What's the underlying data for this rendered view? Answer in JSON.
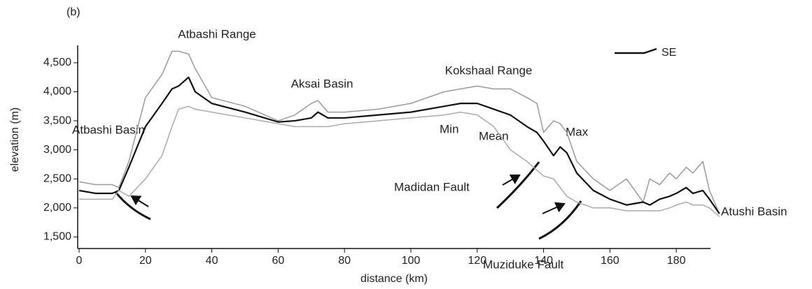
{
  "chart_data": {
    "type": "line",
    "panel_label": "(b)",
    "xlabel": "distance (km)",
    "ylabel": "elevation (m)",
    "annotations": [
      "Atbashi Range",
      "Atbashi Basin",
      "Aksai Basin",
      "Kokshaal Range",
      "Madidan Fault",
      "Muziduke Fault",
      "Atushi Basin",
      "SE"
    ],
    "x": [
      0,
      5,
      10,
      12,
      15,
      20,
      25,
      28,
      30,
      33,
      35,
      40,
      50,
      60,
      65,
      70,
      72,
      75,
      80,
      90,
      100,
      110,
      115,
      120,
      125,
      130,
      135,
      138,
      140,
      143,
      145,
      147,
      150,
      155,
      160,
      165,
      170,
      172,
      175,
      178,
      180,
      183,
      185,
      188,
      190,
      193
    ],
    "series": [
      {
        "name": "Max",
        "color": "#999999",
        "values": [
          2450,
          2400,
          2400,
          2350,
          2800,
          3900,
          4300,
          4700,
          4700,
          4650,
          4400,
          3900,
          3750,
          3500,
          3600,
          3800,
          3850,
          3650,
          3650,
          3700,
          3800,
          4000,
          4050,
          4100,
          4050,
          4050,
          3900,
          3800,
          3300,
          3500,
          3450,
          3300,
          2800,
          2500,
          2300,
          2500,
          2100,
          2500,
          2400,
          2600,
          2500,
          2700,
          2600,
          2800,
          2300,
          1900
        ]
      },
      {
        "name": "Mean",
        "color": "#111111",
        "values": [
          2300,
          2250,
          2250,
          2300,
          2700,
          3400,
          3800,
          4050,
          4100,
          4250,
          4000,
          3800,
          3650,
          3480,
          3500,
          3550,
          3650,
          3550,
          3550,
          3600,
          3650,
          3750,
          3800,
          3800,
          3700,
          3600,
          3400,
          3300,
          3150,
          2900,
          3050,
          2950,
          2600,
          2300,
          2150,
          2050,
          2100,
          2050,
          2150,
          2200,
          2250,
          2350,
          2250,
          2300,
          2150,
          1900
        ]
      },
      {
        "name": "Min",
        "color": "#aaaaaa",
        "values": [
          2150,
          2150,
          2150,
          2300,
          2200,
          2500,
          2900,
          3400,
          3700,
          3750,
          3700,
          3650,
          3550,
          3450,
          3400,
          3400,
          3400,
          3400,
          3450,
          3500,
          3550,
          3600,
          3650,
          3600,
          3400,
          3000,
          2800,
          2650,
          2550,
          2500,
          2350,
          2200,
          2100,
          2000,
          2000,
          1950,
          1950,
          1950,
          1950,
          2000,
          2050,
          2100,
          2050,
          2050,
          2000,
          1850
        ]
      }
    ],
    "xlim": [
      0,
      192
    ],
    "xticks": [
      0,
      20,
      40,
      60,
      80,
      100,
      120,
      140,
      160,
      180
    ],
    "ylim": [
      1300,
      4800
    ],
    "yticks": [
      {
        "value": 1500,
        "label": "1,500"
      },
      {
        "value": 2000,
        "label": "2,000"
      },
      {
        "value": 2500,
        "label": "2,500"
      },
      {
        "value": 3000,
        "label": "3,000"
      },
      {
        "value": 3500,
        "label": "3,500"
      },
      {
        "value": 4000,
        "label": "4,000"
      },
      {
        "value": 4500,
        "label": "4,500"
      }
    ]
  }
}
